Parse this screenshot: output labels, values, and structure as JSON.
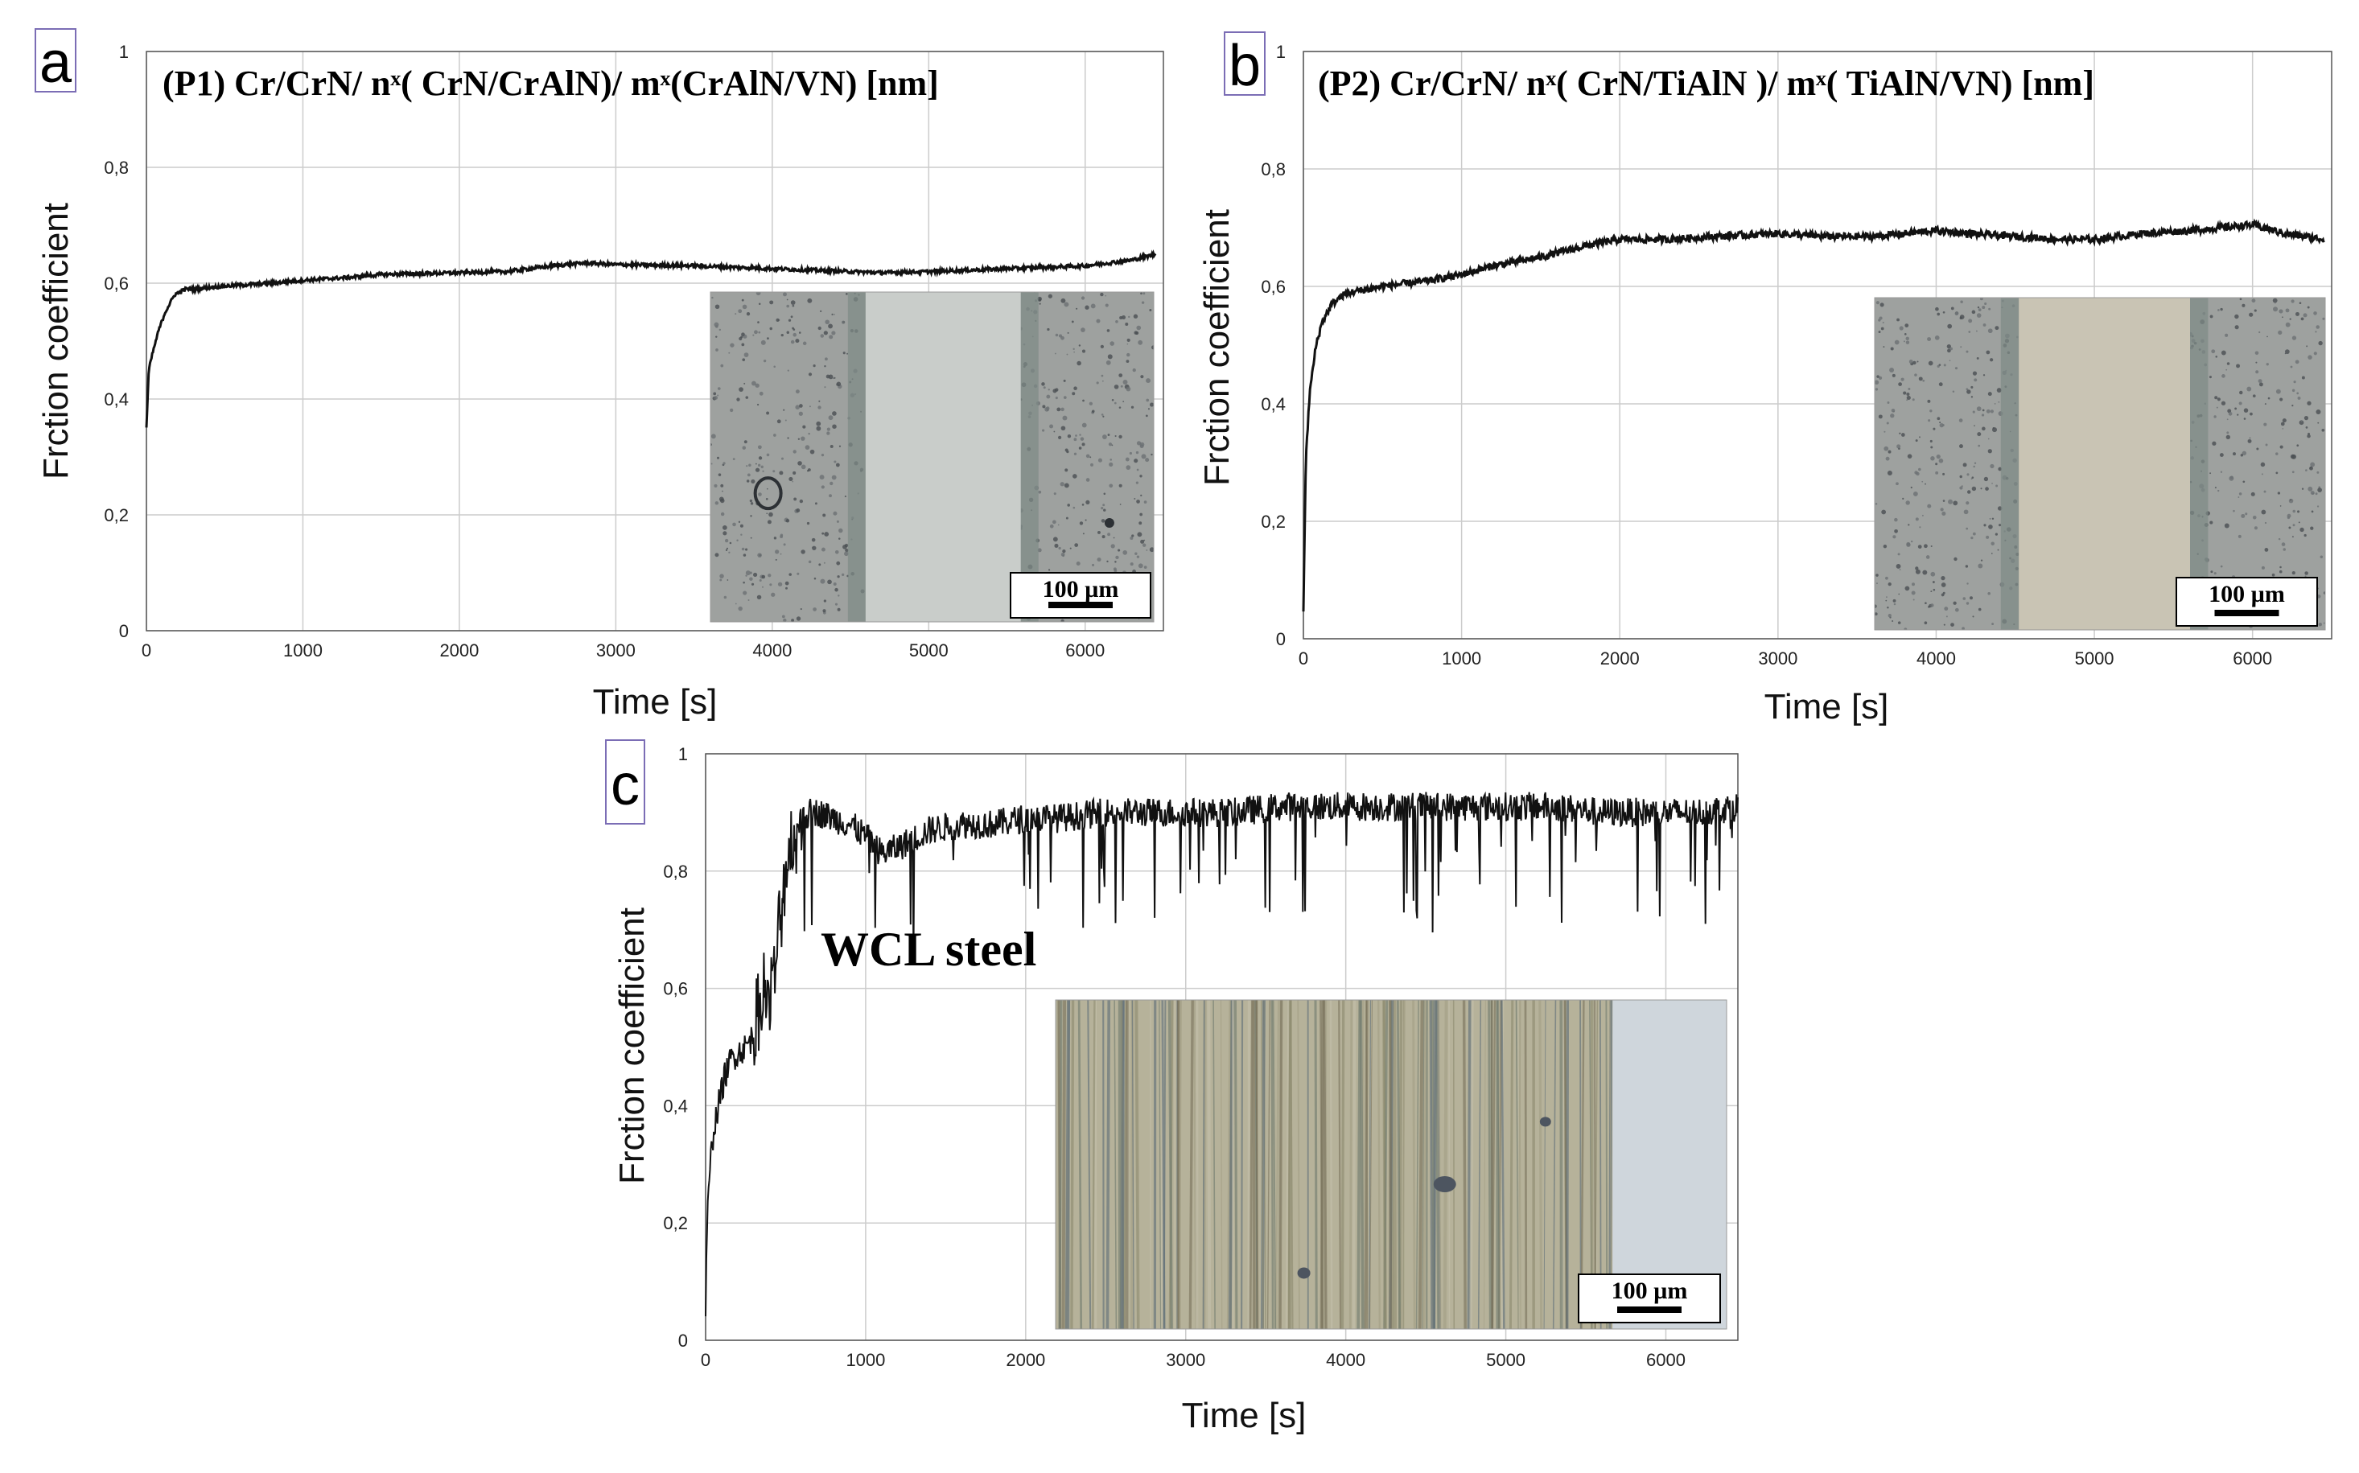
{
  "colors": {
    "line": "#111111",
    "grid": "#cccccc",
    "axis": "#555555",
    "panel_box": "#7b6db5",
    "coating_bg": "#9ea19f",
    "track_a": "#c9cdca",
    "track_b": "#c9c4b4",
    "steel_bg": "#b6b29a",
    "steel_clean": "#cfd6dc"
  },
  "chart_data": [
    {
      "type": "line",
      "panel_label": "a",
      "title": "(P1) Cr/CrN/ nˣ( CrN/CrAlN)/ mˣ(CrAlN/VN) [nm]",
      "xlabel": "Time [s]",
      "ylabel": "Frction coefficient",
      "xlim": [
        0,
        6500
      ],
      "ylim": [
        0,
        1
      ],
      "xticks": [
        "0",
        "1000",
        "2000",
        "3000",
        "4000",
        "5000",
        "6000"
      ],
      "yticks": [
        "0",
        "0,2",
        "0,4",
        "0,6",
        "0,8",
        "1"
      ],
      "grid": true,
      "noise": 0.003,
      "inset_scale": "100 µm",
      "series": [
        {
          "name": "P1",
          "x": [
            0,
            15,
            40,
            80,
            120,
            180,
            250,
            300,
            500,
            800,
            1000,
            1300,
            1500,
            2000,
            2300,
            2600,
            2800,
            3000,
            3500,
            4000,
            4500,
            4700,
            5000,
            5500,
            6000,
            6300,
            6450
          ],
          "y": [
            0.35,
            0.45,
            0.48,
            0.52,
            0.55,
            0.58,
            0.59,
            0.59,
            0.595,
            0.6,
            0.605,
            0.61,
            0.615,
            0.618,
            0.62,
            0.63,
            0.635,
            0.632,
            0.63,
            0.625,
            0.62,
            0.618,
            0.62,
            0.625,
            0.63,
            0.64,
            0.65
          ]
        }
      ]
    },
    {
      "type": "line",
      "panel_label": "b",
      "title": "(P2) Cr/CrN/ nˣ(  CrN/TiAlN )/ mˣ( TiAlN/VN) [nm]",
      "xlabel": "Time [s]",
      "ylabel": "Frction coefficient",
      "xlim": [
        0,
        6500
      ],
      "ylim": [
        0,
        1
      ],
      "xticks": [
        "0",
        "1000",
        "2000",
        "3000",
        "4000",
        "5000",
        "6000"
      ],
      "yticks": [
        "0",
        "0,2",
        "0,4",
        "0,6",
        "0,8",
        "1"
      ],
      "grid": true,
      "noise": 0.006,
      "inset_scale": "100 µm",
      "series": [
        {
          "name": "P2",
          "x": [
            0,
            15,
            40,
            80,
            120,
            180,
            250,
            300,
            500,
            800,
            1000,
            1200,
            1500,
            1800,
            2000,
            2300,
            2600,
            3000,
            3300,
            3600,
            4000,
            4200,
            4500,
            4800,
            5000,
            5300,
            5600,
            6000,
            6200,
            6450
          ],
          "y": [
            0.05,
            0.3,
            0.42,
            0.5,
            0.54,
            0.57,
            0.585,
            0.59,
            0.6,
            0.61,
            0.62,
            0.635,
            0.65,
            0.67,
            0.68,
            0.68,
            0.685,
            0.69,
            0.685,
            0.685,
            0.695,
            0.69,
            0.685,
            0.68,
            0.68,
            0.69,
            0.695,
            0.705,
            0.69,
            0.68
          ]
        }
      ]
    },
    {
      "type": "line",
      "panel_label": "c",
      "title": "",
      "annotation": "WCL steel",
      "xlabel": "Time [s]",
      "ylabel": "Frction coefficient",
      "xlim": [
        0,
        6450
      ],
      "ylim": [
        0,
        1
      ],
      "xticks": [
        "0",
        "1000",
        "2000",
        "3000",
        "4000",
        "5000",
        "6000"
      ],
      "yticks": [
        "0",
        "0,2",
        "0,4",
        "0,6",
        "0,8",
        "1"
      ],
      "grid": true,
      "noise": 0.025,
      "inset_scale": "100 µm",
      "series": [
        {
          "name": "WCL steel",
          "x": [
            0,
            10,
            30,
            50,
            80,
            120,
            160,
            200,
            250,
            300,
            330,
            360,
            400,
            430,
            460,
            500,
            550,
            600,
            650,
            700,
            800,
            900,
            1000,
            1100,
            1200,
            1400,
            1600,
            1800,
            2000,
            2200,
            2500,
            2800,
            3000,
            3300,
            3600,
            3800,
            4000,
            4300,
            4600,
            5000,
            5300,
            5600,
            5800,
            6000,
            6200,
            6450
          ],
          "y": [
            0.05,
            0.2,
            0.3,
            0.36,
            0.4,
            0.45,
            0.48,
            0.49,
            0.5,
            0.52,
            0.56,
            0.6,
            0.58,
            0.62,
            0.7,
            0.8,
            0.85,
            0.88,
            0.9,
            0.9,
            0.89,
            0.88,
            0.86,
            0.83,
            0.84,
            0.87,
            0.88,
            0.88,
            0.89,
            0.89,
            0.9,
            0.9,
            0.9,
            0.9,
            0.91,
            0.91,
            0.91,
            0.91,
            0.91,
            0.91,
            0.91,
            0.9,
            0.9,
            0.9,
            0.9,
            0.91
          ]
        }
      ]
    }
  ]
}
